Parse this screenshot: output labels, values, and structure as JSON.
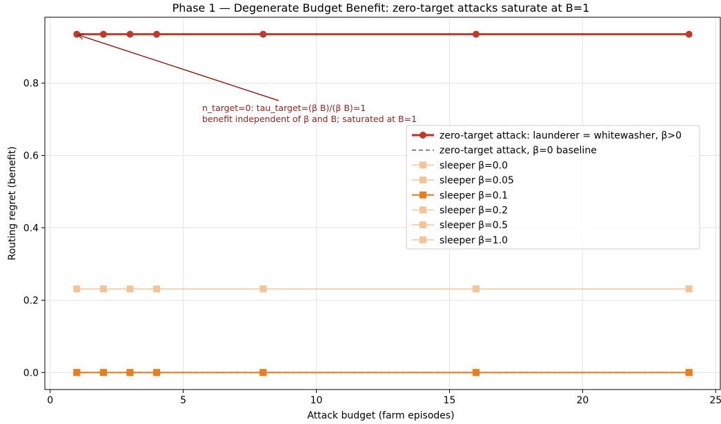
{
  "chart_data": {
    "type": "line",
    "title": "Phase 1 — Degenerate Budget Benefit: zero-target attacks saturate at B=1",
    "xlabel": "Attack budget (farm episodes)",
    "ylabel": "Routing regret (benefit)",
    "xlim": [
      -0.2,
      25.2
    ],
    "ylim": [
      -0.047,
      0.982
    ],
    "xticks": [
      0,
      5,
      10,
      15,
      20,
      25
    ],
    "yticks": [
      0.0,
      0.2,
      0.4,
      0.6,
      0.8
    ],
    "grid": true,
    "legend_position": "center-right",
    "x": [
      1,
      2,
      3,
      4,
      8,
      16,
      24
    ],
    "series": [
      {
        "name": "zero-target attack: launderer = whitewasher, β>0",
        "values": [
          0.935,
          0.935,
          0.935,
          0.935,
          0.935,
          0.935,
          0.935
        ],
        "color": "#c0392b",
        "marker": "circle",
        "line": "solid",
        "opacity": 1.0,
        "line_width": 3.2
      },
      {
        "name": "zero-target attack, β=0 baseline",
        "values": [
          0.0,
          0.0,
          0.0,
          0.0,
          0.0,
          0.0,
          0.0
        ],
        "color": "#808080",
        "marker": "none",
        "line": "dashed",
        "opacity": 1.0,
        "line_width": 2
      },
      {
        "name": "sleeper β=0.0",
        "values": [
          0.231,
          0.231,
          0.231,
          0.231,
          0.231,
          0.231,
          0.231
        ],
        "color": "#e67e22",
        "marker": "square",
        "line": "solid",
        "opacity": 0.45,
        "line_width": 1.5
      },
      {
        "name": "sleeper β=0.05",
        "values": [
          0.0,
          0.0,
          0.0,
          0.0,
          0.0,
          0.0,
          0.0
        ],
        "color": "#e67e22",
        "marker": "square",
        "line": "solid",
        "opacity": 0.45,
        "line_width": 1.5
      },
      {
        "name": "sleeper β=0.1",
        "values": [
          0.0,
          0.0,
          0.0,
          0.0,
          0.0,
          0.0,
          0.0
        ],
        "color": "#e67e22",
        "marker": "square",
        "line": "solid",
        "opacity": 1.0,
        "line_width": 2.2
      },
      {
        "name": "sleeper β=0.2",
        "values": [
          0.0,
          0.0,
          0.0,
          0.0,
          0.0,
          0.0,
          0.0
        ],
        "color": "#e67e22",
        "marker": "square",
        "line": "solid",
        "opacity": 0.45,
        "line_width": 1.5
      },
      {
        "name": "sleeper β=0.5",
        "values": [
          0.0,
          0.0,
          0.0,
          0.0,
          0.0,
          0.0,
          0.0
        ],
        "color": "#e67e22",
        "marker": "square",
        "line": "solid",
        "opacity": 0.45,
        "line_width": 1.5
      },
      {
        "name": "sleeper β=1.0",
        "values": [
          0.0,
          0.0,
          0.0,
          0.0,
          0.0,
          0.0,
          0.0
        ],
        "color": "#e67e22",
        "marker": "square",
        "line": "solid",
        "opacity": 0.45,
        "line_width": 1.5
      }
    ],
    "annotation": {
      "lines": [
        "n_target=0: tau_target=(β B)/(β B)=1",
        "benefit independent of β and B; saturated at B=1"
      ],
      "color": "#8b2420",
      "arrow_target": [
        1,
        0.935
      ]
    }
  }
}
